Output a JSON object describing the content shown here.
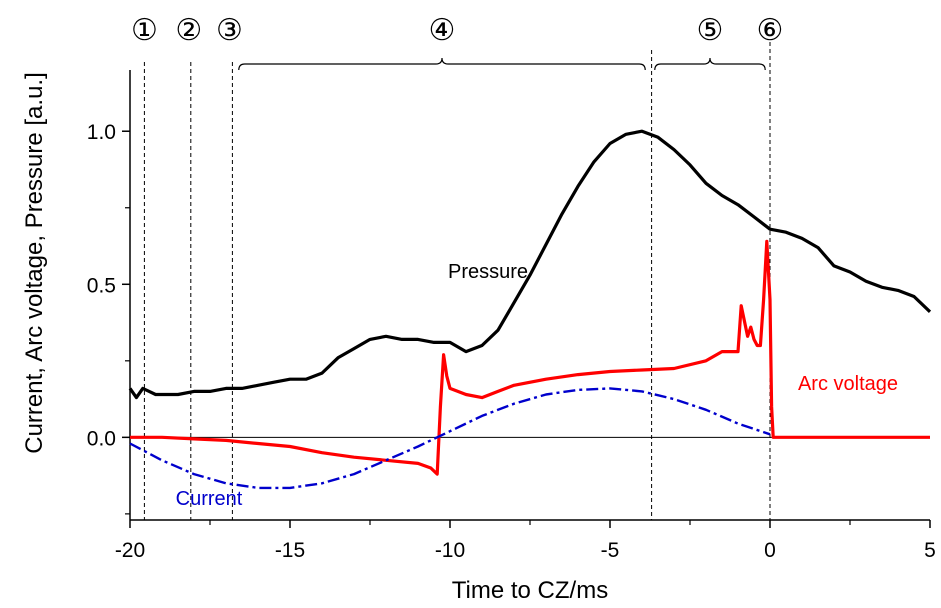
{
  "chart_data": {
    "type": "line",
    "title": "",
    "xlabel": "Time to CZ/ms",
    "ylabel": "Current, Arc voltage, Pressure [a.u.]",
    "xlim": [
      -20,
      5
    ],
    "ylim": [
      -0.27,
      1.2
    ],
    "x_ticks": [
      -20,
      -15,
      -10,
      -5,
      0,
      5
    ],
    "x_tick_labels": [
      "-20",
      "-15",
      "-10",
      "-5",
      "0",
      "5"
    ],
    "y_ticks": [
      0.0,
      0.5,
      1.0
    ],
    "y_tick_labels": [
      "0.0",
      "0.5",
      "1.0"
    ],
    "grid": false,
    "legend": "none",
    "zero_line": 0,
    "phase_markers": [
      {
        "label": "①",
        "x": -19.55
      },
      {
        "label": "②",
        "x": -18.1
      },
      {
        "label": "③",
        "x": -16.8
      },
      {
        "label": "⑤",
        "x": -3.7
      },
      {
        "label": "⑥",
        "x": 0
      }
    ],
    "brackets": [
      {
        "label": "④",
        "x_start": -16.6,
        "x_end": -3.9
      },
      {
        "label": "⑤",
        "x_start": -3.6,
        "x_end": -0.15
      }
    ],
    "series": [
      {
        "name": "Pressure",
        "color": "#000000",
        "style": "solid",
        "x": [
          -20,
          -19.8,
          -19.6,
          -19.4,
          -19.2,
          -19,
          -18.5,
          -18,
          -17.5,
          -17,
          -16.5,
          -16,
          -15.5,
          -15,
          -14.5,
          -14,
          -13.5,
          -13,
          -12.5,
          -12,
          -11.5,
          -11,
          -10.5,
          -10,
          -9.5,
          -9,
          -8.5,
          -8,
          -7.5,
          -7,
          -6.5,
          -6,
          -5.5,
          -5,
          -4.5,
          -4,
          -3.5,
          -3,
          -2.5,
          -2,
          -1.5,
          -1,
          -0.5,
          0,
          0.5,
          1,
          1.5,
          2,
          2.5,
          3,
          3.5,
          4,
          4.5,
          5
        ],
        "values": [
          0.16,
          0.13,
          0.16,
          0.15,
          0.14,
          0.14,
          0.14,
          0.15,
          0.15,
          0.16,
          0.16,
          0.17,
          0.18,
          0.19,
          0.19,
          0.21,
          0.26,
          0.29,
          0.32,
          0.33,
          0.32,
          0.32,
          0.31,
          0.31,
          0.28,
          0.3,
          0.35,
          0.44,
          0.53,
          0.63,
          0.73,
          0.82,
          0.9,
          0.96,
          0.99,
          1.0,
          0.98,
          0.94,
          0.89,
          0.83,
          0.79,
          0.76,
          0.72,
          0.68,
          0.67,
          0.65,
          0.62,
          0.56,
          0.54,
          0.51,
          0.49,
          0.48,
          0.46,
          0.41
        ]
      },
      {
        "name": "Arc voltage",
        "color": "#ff0000",
        "style": "solid",
        "x": [
          -20,
          -19,
          -18,
          -17,
          -16,
          -15,
          -14,
          -13,
          -12,
          -11,
          -10.6,
          -10.4,
          -10.3,
          -10.2,
          -10.1,
          -10,
          -9.5,
          -9,
          -8.5,
          -8,
          -7,
          -6,
          -5,
          -4,
          -3,
          -2,
          -1.5,
          -1,
          -0.9,
          -0.8,
          -0.7,
          -0.6,
          -0.5,
          -0.4,
          -0.3,
          -0.2,
          -0.1,
          0,
          0.05,
          0.1,
          1,
          2,
          3,
          4,
          5
        ],
        "values": [
          0.0,
          0.0,
          -0.005,
          -0.01,
          -0.02,
          -0.03,
          -0.05,
          -0.065,
          -0.075,
          -0.085,
          -0.1,
          -0.12,
          0.1,
          0.27,
          0.2,
          0.16,
          0.14,
          0.13,
          0.15,
          0.17,
          0.19,
          0.205,
          0.215,
          0.22,
          0.225,
          0.25,
          0.28,
          0.28,
          0.43,
          0.38,
          0.33,
          0.36,
          0.32,
          0.3,
          0.3,
          0.45,
          0.64,
          0.45,
          0.1,
          0.0,
          0.0,
          0.0,
          0.0,
          0.0,
          0.0
        ]
      },
      {
        "name": "Current",
        "color": "#0000cc",
        "style": "dash-dot",
        "x": [
          -20,
          -19,
          -18,
          -17,
          -16,
          -15,
          -14,
          -13,
          -12,
          -11,
          -10,
          -9,
          -8,
          -7,
          -6,
          -5,
          -4,
          -3,
          -2,
          -1,
          0
        ],
        "values": [
          -0.02,
          -0.075,
          -0.12,
          -0.15,
          -0.165,
          -0.165,
          -0.15,
          -0.12,
          -0.075,
          -0.03,
          0.02,
          0.07,
          0.11,
          0.14,
          0.155,
          0.16,
          0.15,
          0.125,
          0.09,
          0.045,
          0.01
        ]
      }
    ],
    "series_labels": [
      {
        "text": "Pressure",
        "color": "#000000"
      },
      {
        "text": "Arc voltage",
        "color": "#ff0000"
      },
      {
        "text": "Current",
        "color": "#0000cc"
      }
    ]
  }
}
